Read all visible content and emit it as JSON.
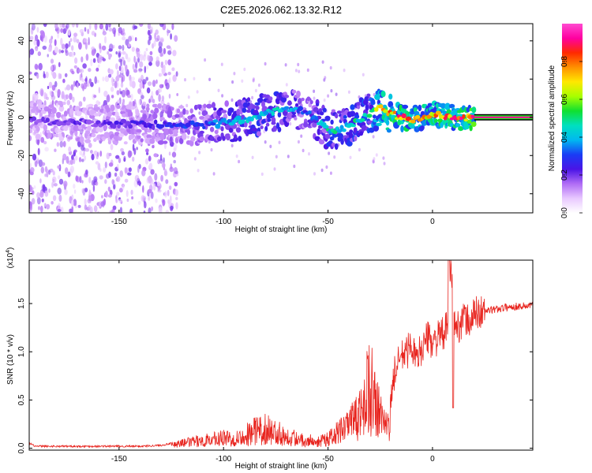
{
  "figure_title": "C2E5.2026.062.13.32.R12",
  "colors": {
    "ink": "#000000",
    "snr_line": "#e8251f",
    "scatter_low": "#b483f2",
    "scatter_mid": "#3b1cf0",
    "colormap": [
      "#ffffff",
      "#e8c8ff",
      "#b06cf5",
      "#4a14e6",
      "#1a3cf5",
      "#00b8f0",
      "#00e0c0",
      "#10e030",
      "#a8ff00",
      "#ffe800",
      "#ff9000",
      "#ff2a00",
      "#ff00a0",
      "#ff4ad0"
    ]
  },
  "chart_data": [
    {
      "type": "heatmap",
      "title": "",
      "xlabel": "Height of straight line (km)",
      "ylabel": "Frequency (Hz)",
      "xlim": [
        -193,
        48
      ],
      "ylim": [
        -50,
        49
      ],
      "xticks": [
        -150,
        -100,
        -50,
        0
      ],
      "yticks": [
        -40,
        -20,
        0,
        20,
        40
      ],
      "xtick_labels": [
        "-150",
        "-100",
        "-50",
        "0"
      ],
      "ytick_labels": [
        "-40",
        "-20",
        "0",
        "20",
        "40"
      ],
      "colorbar": {
        "label": "Normalized spectral amplitude",
        "range": [
          0.0,
          1.0
        ],
        "ticks": [
          0.0,
          0.2,
          0.4,
          0.6,
          0.8
        ],
        "tick_labels": [
          "0.0",
          "0.2",
          "0.4",
          "0.6",
          "0.8"
        ]
      },
      "ridge": {
        "x": [
          -193,
          -160,
          -130,
          -110,
          -100,
          -90,
          -80,
          -70,
          -60,
          -50,
          -40,
          -30,
          -25,
          -20,
          -15,
          -10,
          -5,
          0,
          5,
          10,
          20,
          48
        ],
        "y": [
          -2,
          -3,
          -4,
          -4,
          -3,
          -1,
          2,
          4,
          3,
          -7,
          -5,
          2,
          5,
          2,
          0,
          -1,
          0,
          2,
          1,
          0,
          0,
          0
        ],
        "amplitude": [
          0.2,
          0.2,
          0.25,
          0.3,
          0.35,
          0.4,
          0.45,
          0.4,
          0.3,
          0.45,
          0.45,
          0.5,
          0.7,
          0.75,
          0.8,
          0.75,
          0.7,
          0.75,
          0.8,
          0.8,
          0.85,
          0.9
        ]
      },
      "scatter_region": {
        "x_range": [
          -193,
          -122
        ],
        "y_range": [
          -50,
          49
        ],
        "amplitude": [
          0.05,
          0.2
        ]
      }
    },
    {
      "type": "line",
      "title": "",
      "xlabel": "Height of straight line (km)",
      "ylabel": "SNR (10 * v/v)",
      "y_scale_note": "(x10⁴)",
      "y_scale_base": "(x10",
      "y_scale_exp": "4",
      "y_scale_close": ")",
      "xlim": [
        -193,
        48
      ],
      "ylim": [
        -0.02,
        1.95
      ],
      "xticks": [
        -150,
        -100,
        -50,
        0
      ],
      "yticks": [
        0.0,
        0.5,
        1.0,
        1.5
      ],
      "xtick_labels": [
        "-150",
        "-100",
        "-50",
        "0"
      ],
      "ytick_labels": [
        "0.0",
        "0.5",
        "1.0",
        "1.5"
      ],
      "series": [
        {
          "name": "SNR",
          "x": [
            -193,
            -190,
            -180,
            -170,
            -160,
            -150,
            -140,
            -130,
            -125,
            -120,
            -115,
            -110,
            -105,
            -100,
            -95,
            -90,
            -85,
            -80,
            -75,
            -70,
            -65,
            -60,
            -55,
            -50,
            -45,
            -40,
            -35,
            -32,
            -30,
            -28,
            -25,
            -22,
            -20,
            -18,
            -15,
            -12,
            -10,
            -8,
            -5,
            -2,
            0,
            3,
            6,
            8,
            9,
            10,
            12,
            15,
            18,
            20,
            25,
            30,
            35,
            40,
            48
          ],
          "y": [
            0.05,
            0.02,
            0.02,
            0.02,
            0.02,
            0.02,
            0.02,
            0.03,
            0.05,
            0.08,
            0.1,
            0.12,
            0.14,
            0.16,
            0.16,
            0.2,
            0.28,
            0.3,
            0.25,
            0.2,
            0.15,
            0.12,
            0.12,
            0.14,
            0.25,
            0.35,
            0.5,
            0.8,
            1.1,
            0.7,
            0.5,
            0.3,
            0.5,
            0.8,
            0.95,
            1.0,
            1.1,
            0.9,
            1.05,
            1.15,
            1.1,
            1.15,
            1.2,
            1.35,
            1.95,
            1.3,
            1.25,
            1.35,
            1.3,
            1.4,
            1.42,
            1.44,
            1.46,
            1.47,
            1.48
          ]
        }
      ]
    }
  ]
}
